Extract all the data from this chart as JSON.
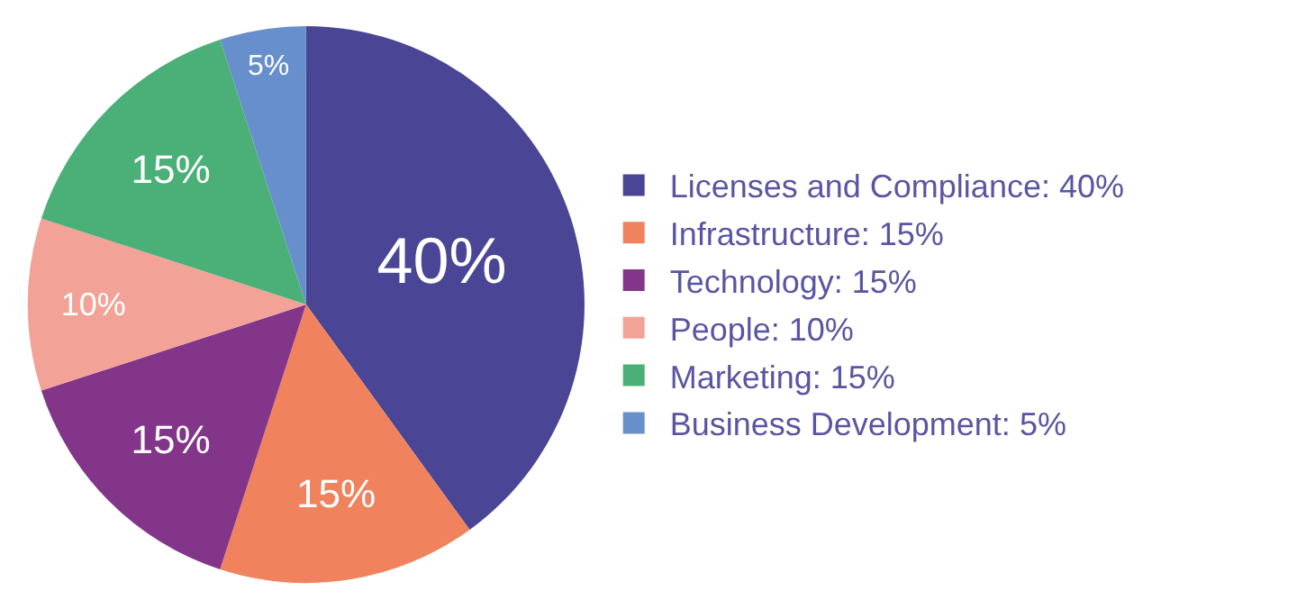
{
  "chart_data": {
    "type": "pie",
    "categories": [
      "Licenses and Compliance: 40%",
      "Infrastructure: 15%",
      "Technology: 15%",
      "People: 10%",
      "Marketing: 15%",
      "Business Development: 5%"
    ],
    "values": [
      40,
      15,
      15,
      10,
      15,
      5
    ],
    "value_labels": [
      "40%",
      "15%",
      "15%",
      "10%",
      "15%",
      "5%"
    ],
    "colors": [
      "#4a4595",
      "#f0825e",
      "#83358a",
      "#f2a297",
      "#4bb077",
      "#678fcc"
    ],
    "legend": "right"
  }
}
